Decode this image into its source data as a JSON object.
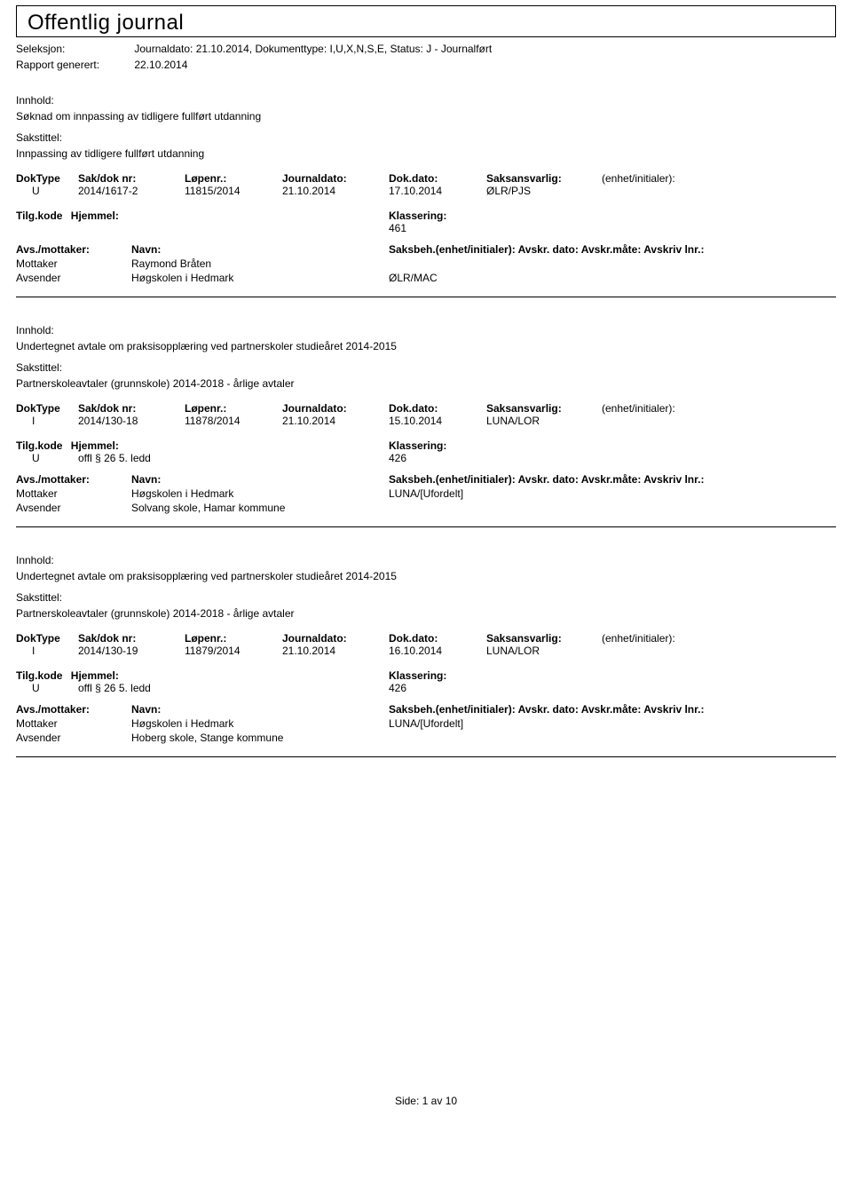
{
  "header": {
    "title": "Offentlig journal",
    "seleksjon_label": "Seleksjon:",
    "seleksjon_value": "Journaldato: 21.10.2014, Dokumenttype: I,U,X,N,S,E, Status: J - Journalført",
    "rapport_label": "Rapport generert:",
    "rapport_value": "22.10.2014"
  },
  "field_labels": {
    "innhold": "Innhold:",
    "sakstittel": "Sakstittel:",
    "doktype": "DokType",
    "sakdok": "Sak/dok nr:",
    "lopenr": "Løpenr.:",
    "journaldato": "Journaldato:",
    "dokdato": "Dok.dato:",
    "saksansvarlig": "Saksansvarlig:",
    "enhet_initialer": "(enhet/initialer):",
    "tilgkode": "Tilg.kode",
    "hjemmel": "Hjemmel:",
    "klassering": "Klassering:",
    "avs_mottaker": "Avs./mottaker:",
    "navn": "Navn:",
    "saksbeh": "Saksbeh.(enhet/initialer): Avskr. dato: Avskr.måte: Avskriv lnr.:",
    "mottaker": "Mottaker",
    "avsender": "Avsender"
  },
  "records": [
    {
      "innhold": "Søknad om innpassing av tidligere fullført utdanning",
      "sakstittel": "Innpassing av tidligere fullført utdanning",
      "doktype": "U",
      "sakdok": "2014/1617-2",
      "lopenr": "11815/2014",
      "journaldato": "21.10.2014",
      "dokdato": "17.10.2014",
      "saksansvarlig": "ØLR/PJS",
      "tilgkode": "",
      "hjemmel": "",
      "klassering": "461",
      "parties": [
        {
          "role": "Mottaker",
          "name": "Raymond Bråten",
          "saksbeh": ""
        },
        {
          "role": "Avsender",
          "name": "Høgskolen i Hedmark",
          "saksbeh": "ØLR/MAC"
        }
      ]
    },
    {
      "innhold": "Undertegnet avtale om praksisopplæring ved partnerskoler studieåret 2014-2015",
      "sakstittel": "Partnerskoleavtaler (grunnskole) 2014-2018 - årlige avtaler",
      "doktype": "I",
      "sakdok": "2014/130-18",
      "lopenr": "11878/2014",
      "journaldato": "21.10.2014",
      "dokdato": "15.10.2014",
      "saksansvarlig": "LUNA/LOR",
      "tilgkode": "U",
      "hjemmel": "offl § 26 5. ledd",
      "klassering": "426",
      "parties": [
        {
          "role": "Mottaker",
          "name": "Høgskolen i Hedmark",
          "saksbeh": "LUNA/[Ufordelt]"
        },
        {
          "role": "Avsender",
          "name": "Solvang skole, Hamar kommune",
          "saksbeh": ""
        }
      ]
    },
    {
      "innhold": "Undertegnet avtale om praksisopplæring ved partnerskoler studieåret 2014-2015",
      "sakstittel": "Partnerskoleavtaler (grunnskole) 2014-2018 - årlige avtaler",
      "doktype": "I",
      "sakdok": "2014/130-19",
      "lopenr": "11879/2014",
      "journaldato": "21.10.2014",
      "dokdato": "16.10.2014",
      "saksansvarlig": "LUNA/LOR",
      "tilgkode": "U",
      "hjemmel": "offl § 26 5. ledd",
      "klassering": "426",
      "parties": [
        {
          "role": "Mottaker",
          "name": "Høgskolen i Hedmark",
          "saksbeh": "LUNA/[Ufordelt]"
        },
        {
          "role": "Avsender",
          "name": "Hoberg skole, Stange kommune",
          "saksbeh": ""
        }
      ]
    }
  ],
  "footer": {
    "side_label": "Side:",
    "page": "1",
    "av": "av",
    "total": "10"
  }
}
